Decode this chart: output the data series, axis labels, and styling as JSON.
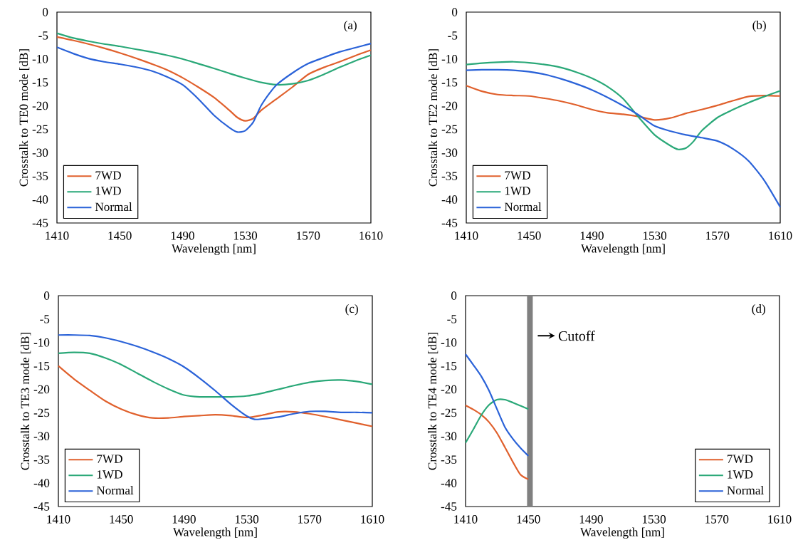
{
  "chart_data": [
    {
      "type": "line",
      "xlabel": "Wavelength [nm]",
      "ylabel": "Crosstalk to TE0 mode [dB]",
      "xlim": [
        1410,
        1610
      ],
      "ylim": [
        -45,
        0
      ],
      "xticks": [
        1410,
        1450,
        1490,
        1530,
        1570,
        1610
      ],
      "yticks": [
        -45,
        -40,
        -35,
        -30,
        -25,
        -20,
        -15,
        -10,
        -5,
        0
      ],
      "grid": false,
      "legend": "bottom left",
      "annotations": [
        "(a)"
      ],
      "series": [
        {
          "name": "7WD",
          "color": "#e0602c",
          "x": [
            1410,
            1420,
            1430,
            1440,
            1450,
            1460,
            1470,
            1480,
            1490,
            1500,
            1510,
            1520,
            1525,
            1530,
            1535,
            1540,
            1550,
            1560,
            1570,
            1580,
            1590,
            1600,
            1610
          ],
          "values": [
            -5.3,
            -6,
            -6.8,
            -7.7,
            -8.7,
            -9.8,
            -11,
            -12.3,
            -14,
            -16,
            -18.2,
            -21,
            -22.5,
            -23.2,
            -22.7,
            -21,
            -18.5,
            -16,
            -13.3,
            -11.8,
            -10.6,
            -9.3,
            -8.1
          ]
        },
        {
          "name": "1WD",
          "color": "#2aa878",
          "x": [
            1410,
            1420,
            1430,
            1440,
            1450,
            1460,
            1470,
            1480,
            1490,
            1500,
            1510,
            1520,
            1530,
            1540,
            1550,
            1560,
            1570,
            1580,
            1590,
            1600,
            1610
          ],
          "values": [
            -4.5,
            -5.5,
            -6.2,
            -6.8,
            -7.3,
            -7.9,
            -8.5,
            -9.2,
            -10,
            -11,
            -12,
            -13.1,
            -14.1,
            -15,
            -15.5,
            -15.3,
            -14.6,
            -13.3,
            -11.8,
            -10.4,
            -9.2
          ]
        },
        {
          "name": "Normal",
          "color": "#2a62d8",
          "x": [
            1410,
            1420,
            1430,
            1440,
            1450,
            1460,
            1470,
            1480,
            1490,
            1500,
            1510,
            1520,
            1525,
            1530,
            1535,
            1540,
            1545,
            1550,
            1560,
            1570,
            1580,
            1590,
            1600,
            1610
          ],
          "values": [
            -7.5,
            -8.8,
            -9.9,
            -10.6,
            -11.1,
            -11.7,
            -12.5,
            -13.8,
            -15.5,
            -18.5,
            -22,
            -24.7,
            -25.6,
            -25.3,
            -23.5,
            -20,
            -17.5,
            -15.5,
            -13,
            -11,
            -9.7,
            -8.5,
            -7.6,
            -6.7
          ]
        }
      ]
    },
    {
      "type": "line",
      "xlabel": "Wavelength [nm]",
      "ylabel": "Crosstalk to TE2 mode [dB]",
      "xlim": [
        1410,
        1610
      ],
      "ylim": [
        -45,
        0
      ],
      "xticks": [
        1410,
        1450,
        1490,
        1530,
        1570,
        1610
      ],
      "yticks": [
        -45,
        -40,
        -35,
        -30,
        -25,
        -20,
        -15,
        -10,
        -5,
        0
      ],
      "grid": false,
      "legend": "bottom left",
      "annotations": [
        "(b)"
      ],
      "series": [
        {
          "name": "7WD",
          "color": "#e0602c",
          "x": [
            1410,
            1420,
            1430,
            1440,
            1450,
            1460,
            1470,
            1480,
            1490,
            1500,
            1510,
            1520,
            1530,
            1540,
            1550,
            1560,
            1570,
            1580,
            1590,
            1600,
            1610
          ],
          "values": [
            -15.7,
            -16.9,
            -17.6,
            -17.8,
            -17.9,
            -18.4,
            -19,
            -19.8,
            -20.8,
            -21.5,
            -21.8,
            -22.3,
            -23,
            -22.6,
            -21.6,
            -20.8,
            -19.9,
            -18.9,
            -18,
            -17.8,
            -17.9
          ]
        },
        {
          "name": "1WD",
          "color": "#2aa878",
          "x": [
            1410,
            1420,
            1430,
            1440,
            1450,
            1460,
            1470,
            1480,
            1490,
            1500,
            1510,
            1520,
            1530,
            1540,
            1545,
            1550,
            1555,
            1560,
            1570,
            1580,
            1590,
            1600,
            1610
          ],
          "values": [
            -11.2,
            -10.9,
            -10.7,
            -10.6,
            -10.8,
            -11.2,
            -11.8,
            -12.8,
            -14.1,
            -15.9,
            -18.5,
            -22.5,
            -26.2,
            -28.5,
            -29.3,
            -29,
            -27.5,
            -25.3,
            -22.5,
            -20.8,
            -19.3,
            -18,
            -16.8
          ]
        },
        {
          "name": "Normal",
          "color": "#2a62d8",
          "x": [
            1410,
            1420,
            1430,
            1440,
            1450,
            1460,
            1470,
            1480,
            1490,
            1500,
            1510,
            1520,
            1530,
            1540,
            1550,
            1560,
            1570,
            1580,
            1590,
            1600,
            1610
          ],
          "values": [
            -12.4,
            -12.3,
            -12.3,
            -12.4,
            -12.7,
            -13.3,
            -14.2,
            -15.3,
            -16.6,
            -18.2,
            -20,
            -22,
            -24.3,
            -25.4,
            -26.2,
            -26.8,
            -27.5,
            -29.2,
            -31.8,
            -36,
            -41.6
          ]
        }
      ]
    },
    {
      "type": "line",
      "xlabel": "Wavelength [nm]",
      "ylabel": "Crosstalk to TE3 mode [dB]",
      "xlim": [
        1410,
        1610
      ],
      "ylim": [
        -45,
        0
      ],
      "xticks": [
        1410,
        1450,
        1490,
        1530,
        1570,
        1610
      ],
      "yticks": [
        -45,
        -40,
        -35,
        -30,
        -25,
        -20,
        -15,
        -10,
        -5,
        0
      ],
      "grid": false,
      "legend": "bottom left",
      "annotations": [
        "(c)"
      ],
      "series": [
        {
          "name": "7WD",
          "color": "#e0602c",
          "x": [
            1410,
            1420,
            1430,
            1440,
            1450,
            1460,
            1470,
            1480,
            1490,
            1500,
            1510,
            1520,
            1530,
            1540,
            1550,
            1560,
            1570,
            1580,
            1590,
            1600,
            1610
          ],
          "values": [
            -15,
            -17.8,
            -20.2,
            -22.5,
            -24.2,
            -25.4,
            -26.1,
            -26.1,
            -25.8,
            -25.6,
            -25.4,
            -25.6,
            -26,
            -25.5,
            -24.8,
            -24.8,
            -25.2,
            -25.8,
            -26.5,
            -27.2,
            -27.9
          ]
        },
        {
          "name": "1WD",
          "color": "#2aa878",
          "x": [
            1410,
            1420,
            1430,
            1440,
            1450,
            1460,
            1470,
            1480,
            1490,
            1500,
            1510,
            1520,
            1530,
            1540,
            1550,
            1560,
            1570,
            1580,
            1590,
            1600,
            1610
          ],
          "values": [
            -12.3,
            -12.1,
            -12.3,
            -13.3,
            -14.7,
            -16.5,
            -18.3,
            -19.9,
            -21.2,
            -21.6,
            -21.6,
            -21.6,
            -21.4,
            -20.8,
            -20,
            -19.2,
            -18.5,
            -18.1,
            -18,
            -18.3,
            -18.9
          ]
        },
        {
          "name": "Normal",
          "color": "#2a62d8",
          "x": [
            1410,
            1420,
            1430,
            1440,
            1450,
            1460,
            1470,
            1480,
            1490,
            1500,
            1510,
            1520,
            1530,
            1535,
            1540,
            1550,
            1560,
            1570,
            1580,
            1590,
            1600,
            1610
          ],
          "values": [
            -8.4,
            -8.4,
            -8.5,
            -9,
            -9.8,
            -10.8,
            -12,
            -13.4,
            -15.2,
            -17.6,
            -20.3,
            -23.2,
            -25.7,
            -26.4,
            -26.3,
            -25.9,
            -25.2,
            -24.7,
            -24.7,
            -24.9,
            -24.9,
            -25
          ]
        }
      ]
    },
    {
      "type": "line",
      "xlabel": "Wavelength [nm]",
      "ylabel": "Crosstalk to TE4 mode [dB]",
      "xlim": [
        1410,
        1610
      ],
      "ylim": [
        -45,
        0
      ],
      "xticks": [
        1410,
        1450,
        1490,
        1530,
        1570,
        1610
      ],
      "yticks": [
        -45,
        -40,
        -35,
        -30,
        -25,
        -20,
        -15,
        -10,
        -5,
        0
      ],
      "grid": false,
      "legend": "bottom right",
      "annotations": [
        "(d)"
      ],
      "ref_lines": [
        {
          "axis": "x",
          "value": 1451,
          "label": "Cutoff",
          "color": "#808080"
        }
      ],
      "series": [
        {
          "name": "7WD",
          "color": "#e0602c",
          "x": [
            1410,
            1415,
            1420,
            1425,
            1430,
            1435,
            1440,
            1445,
            1450
          ],
          "values": [
            -23.4,
            -24.3,
            -25.4,
            -27,
            -29.3,
            -32.3,
            -35.4,
            -38.2,
            -39.2
          ]
        },
        {
          "name": "1WD",
          "color": "#2aa878",
          "x": [
            1410,
            1415,
            1420,
            1425,
            1430,
            1435,
            1440,
            1445,
            1450
          ],
          "values": [
            -31.4,
            -28.5,
            -25.5,
            -23.3,
            -22.2,
            -22.2,
            -22.8,
            -23.5,
            -24.2
          ]
        },
        {
          "name": "Normal",
          "color": "#2a62d8",
          "x": [
            1410,
            1415,
            1420,
            1425,
            1430,
            1435,
            1440,
            1445,
            1450
          ],
          "values": [
            -12.5,
            -14.8,
            -17.2,
            -20.3,
            -24.2,
            -28,
            -30.5,
            -32.5,
            -34.2
          ]
        }
      ]
    }
  ]
}
